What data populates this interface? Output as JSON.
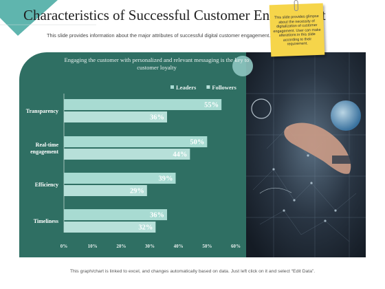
{
  "slide": {
    "title": "Characteristics of Successful Customer Engagement",
    "subtitle": "This slide provides information about the major attributes of successful digital customer engagement.",
    "headline": "Engaging the customer with personalized and relevant messaging is the key to customer loyalty",
    "sticky_note": "This slide provides glimpse about the necessity of digitalization of customer engagement. User can make alterations in this slide according to their requirement.",
    "footnote": "This graph/chart is linked to excel, and changes automatically based on data. Just left click on it and select “Edit Data”."
  },
  "colors": {
    "panel": "#2f6f63",
    "leaders": "#a8dbd2",
    "followers": "#b7e0d9",
    "label_text": "#ffffff",
    "accent_circle": "#8ec5c0",
    "sticky": "#f6d54a"
  },
  "chart_data": {
    "type": "bar",
    "orientation": "horizontal",
    "categories": [
      "Transparency",
      "Real-time engagement",
      "Efficiency",
      "Timeliness"
    ],
    "series": [
      {
        "name": "Leaders",
        "values": [
          55,
          50,
          39,
          36
        ]
      },
      {
        "name": "Followers",
        "values": [
          36,
          44,
          29,
          32
        ]
      }
    ],
    "value_labels": [
      [
        "55%",
        "36%"
      ],
      [
        "50%",
        "44%"
      ],
      [
        "39%",
        "29%"
      ],
      [
        "36%",
        "32%"
      ]
    ],
    "x_ticks": [
      "0%",
      "10%",
      "20%",
      "30%",
      "40%",
      "50%",
      "60%"
    ],
    "xlim": [
      0,
      60
    ],
    "legend": "top-right",
    "grid": false
  }
}
